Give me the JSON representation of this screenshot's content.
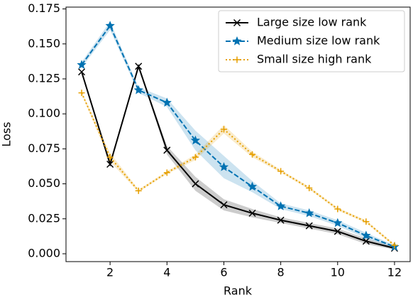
{
  "chart_data": {
    "type": "line",
    "x_label": "Rank",
    "y_label": "Loss",
    "x": [
      1,
      2,
      3,
      4,
      5,
      6,
      7,
      8,
      9,
      10,
      11,
      12
    ],
    "series": [
      {
        "name": "Large size low rank",
        "color": "#000000",
        "dash": "solid",
        "marker": "x",
        "values": [
          0.13,
          0.064,
          0.134,
          0.074,
          0.05,
          0.035,
          0.029,
          0.024,
          0.02,
          0.016,
          0.009,
          0.004
        ],
        "errors": [
          0.001,
          0.002,
          0.001,
          0.003,
          0.005,
          0.004,
          0.003,
          0.002,
          0.002,
          0.002,
          0.002,
          0.001
        ]
      },
      {
        "name": "Medium size low rank",
        "color": "#0072b2",
        "dash": "dashed",
        "marker": "star",
        "values": [
          0.135,
          0.163,
          0.117,
          0.108,
          0.081,
          0.062,
          0.048,
          0.034,
          0.029,
          0.022,
          0.013,
          0.005
        ],
        "errors": [
          0.002,
          0.003,
          0.002,
          0.003,
          0.007,
          0.008,
          0.004,
          0.002,
          0.002,
          0.002,
          0.002,
          0.001
        ]
      },
      {
        "name": "Small size high rank",
        "color": "#e69f00",
        "dash": "dotted",
        "marker": "plus",
        "values": [
          0.115,
          0.069,
          0.045,
          0.058,
          0.069,
          0.089,
          0.071,
          0.059,
          0.047,
          0.032,
          0.023,
          0.006
        ],
        "errors": [
          0.001,
          0.003,
          0.001,
          0.001,
          0.002,
          0.003,
          0.002,
          0.001,
          0.001,
          0.001,
          0.001,
          0.001
        ]
      }
    ],
    "xlim": [
      0.45,
      12.55
    ],
    "ylim": [
      -0.0056,
      0.1763
    ],
    "xticks": [
      2,
      4,
      6,
      8,
      10,
      12
    ],
    "yticks": [
      {
        "value": 0,
        "label": "0.000"
      },
      {
        "value": 0.025,
        "label": "0.025"
      },
      {
        "value": 0.05,
        "label": "0.050"
      },
      {
        "value": 0.075,
        "label": "0.075"
      },
      {
        "value": 0.1,
        "label": "0.100"
      },
      {
        "value": 0.125,
        "label": "0.125"
      },
      {
        "value": 0.15,
        "label": "0.150"
      },
      {
        "value": 0.175,
        "label": "0.175"
      }
    ],
    "legend": "upper right",
    "grid": false
  }
}
